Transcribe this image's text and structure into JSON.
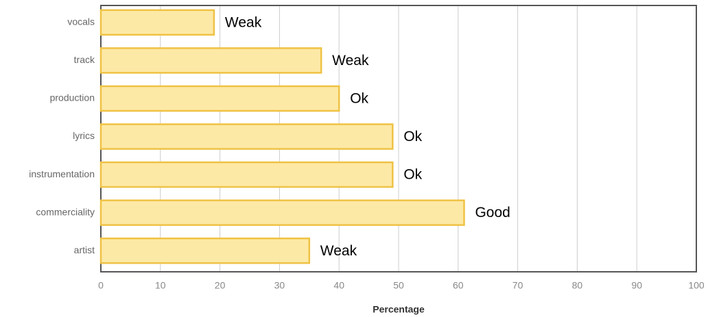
{
  "chart_data": {
    "type": "barh",
    "categories": [
      "vocals",
      "track",
      "production",
      "lyrics",
      "instrumentation",
      "commerciality",
      "artist"
    ],
    "values": [
      19,
      37,
      40,
      49,
      49,
      61,
      35
    ],
    "annotations": [
      "Weak",
      "Weak",
      "Ok",
      "Ok",
      "Ok",
      "Good",
      "Weak"
    ],
    "color": "#fde9a6",
    "edge_color": "#efc244",
    "xlabel": "Percentage",
    "xlim": [
      0,
      100
    ],
    "xticks": [
      0,
      10,
      20,
      30,
      40,
      50,
      60,
      70,
      80,
      90,
      100
    ],
    "grid": true
  }
}
